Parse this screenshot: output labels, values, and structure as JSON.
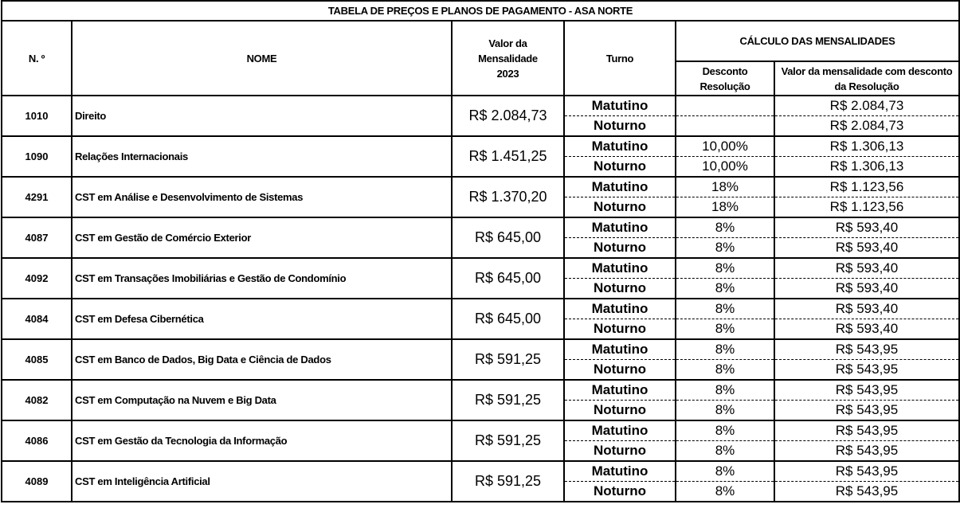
{
  "title": "TABELA DE PREÇOS E PLANOS DE PAGAMENTO - ASA NORTE",
  "headers": {
    "number": "N. º",
    "name": "NOME",
    "price": "Valor da Mensalidade 2023",
    "shift": "Turno",
    "calc": "CÁLCULO DAS MENSALIDADES",
    "discount": "Desconto Resolução",
    "final": "Valor da mensalidade com desconto da Resolução"
  },
  "rows": [
    {
      "number": "1010",
      "name": "Direito",
      "price": "R$ 2.084,73",
      "shifts": [
        {
          "shift": "Matutino",
          "discount": "",
          "final": "R$ 2.084,73"
        },
        {
          "shift": "Noturno",
          "discount": "",
          "final": "R$ 2.084,73"
        }
      ]
    },
    {
      "number": "1090",
      "name": "Relações Internacionais",
      "price": "R$ 1.451,25",
      "shifts": [
        {
          "shift": "Matutino",
          "discount": "10,00%",
          "final": "R$ 1.306,13"
        },
        {
          "shift": "Noturno",
          "discount": "10,00%",
          "final": "R$ 1.306,13"
        }
      ]
    },
    {
      "number": "4291",
      "name": "CST em Análise e Desenvolvimento de Sistemas",
      "price": "R$ 1.370,20",
      "shifts": [
        {
          "shift": "Matutino",
          "discount": "18%",
          "final": "R$ 1.123,56"
        },
        {
          "shift": "Noturno",
          "discount": "18%",
          "final": "R$ 1.123,56"
        }
      ]
    },
    {
      "number": "4087",
      "name": "CST em Gestão de Comércio Exterior",
      "price": "R$ 645,00",
      "shifts": [
        {
          "shift": "Matutino",
          "discount": "8%",
          "final": "R$ 593,40"
        },
        {
          "shift": "Noturno",
          "discount": "8%",
          "final": "R$ 593,40"
        }
      ]
    },
    {
      "number": "4092",
      "name": "CST em Transações Imobiliárias e Gestão de Condomínio",
      "price": "R$ 645,00",
      "shifts": [
        {
          "shift": "Matutino",
          "discount": "8%",
          "final": "R$ 593,40"
        },
        {
          "shift": "Noturno",
          "discount": "8%",
          "final": "R$ 593,40"
        }
      ]
    },
    {
      "number": "4084",
      "name": "CST em Defesa Cibernética",
      "price": "R$ 645,00",
      "shifts": [
        {
          "shift": "Matutino",
          "discount": "8%",
          "final": "R$ 593,40"
        },
        {
          "shift": "Noturno",
          "discount": "8%",
          "final": "R$ 593,40"
        }
      ]
    },
    {
      "number": "4085",
      "name": "CST em Banco de Dados, Big Data e Ciência de Dados",
      "price": "R$ 591,25",
      "shifts": [
        {
          "shift": "Matutino",
          "discount": "8%",
          "final": "R$ 543,95"
        },
        {
          "shift": "Noturno",
          "discount": "8%",
          "final": "R$ 543,95"
        }
      ]
    },
    {
      "number": "4082",
      "name": "CST em Computação na Nuvem e Big Data",
      "price": "R$ 591,25",
      "shifts": [
        {
          "shift": "Matutino",
          "discount": "8%",
          "final": "R$ 543,95"
        },
        {
          "shift": "Noturno",
          "discount": "8%",
          "final": "R$ 543,95"
        }
      ]
    },
    {
      "number": "4086",
      "name": "CST em Gestão da Tecnologia da Informação",
      "price": "R$ 591,25",
      "shifts": [
        {
          "shift": "Matutino",
          "discount": "8%",
          "final": "R$ 543,95"
        },
        {
          "shift": "Noturno",
          "discount": "8%",
          "final": "R$ 543,95"
        }
      ]
    },
    {
      "number": "4089",
      "name": "CST em Inteligência Artificial",
      "price": "R$ 591,25",
      "shifts": [
        {
          "shift": "Matutino",
          "discount": "8%",
          "final": "R$ 543,95"
        },
        {
          "shift": "Noturno",
          "discount": "8%",
          "final": "R$ 543,95"
        }
      ]
    }
  ]
}
